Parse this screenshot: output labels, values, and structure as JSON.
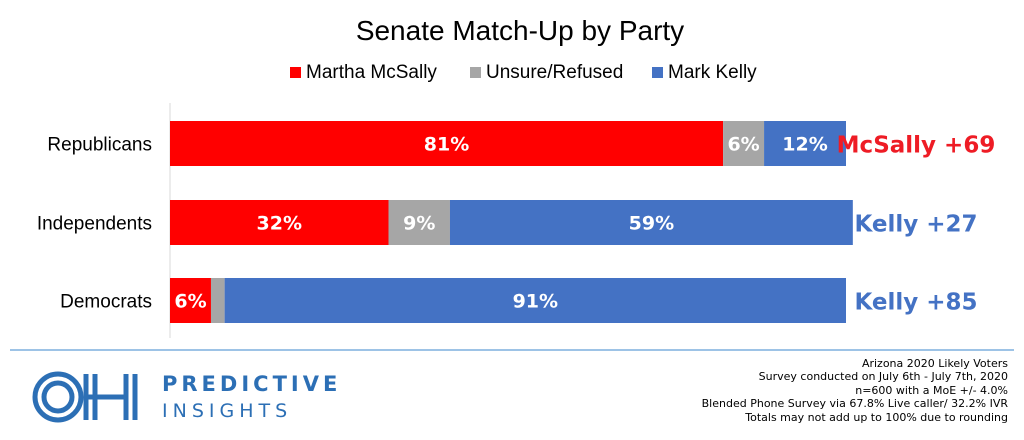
{
  "chart_data": {
    "type": "bar",
    "orientation": "horizontal",
    "stacked": true,
    "title": "Senate Match-Up by Party",
    "legend": {
      "placement": "top-center"
    },
    "categories": [
      "Republicans",
      "Independents",
      "Democrats"
    ],
    "series": [
      {
        "name": "Martha McSally",
        "color": "#ff0000",
        "values": [
          81,
          32,
          6
        ],
        "labels": [
          "81%",
          "32%",
          "6%"
        ]
      },
      {
        "name": "Unsure/Refused",
        "color": "#a6a6a6",
        "values": [
          6,
          9,
          2
        ],
        "labels": [
          "6%",
          "9%",
          ""
        ]
      },
      {
        "name": "Mark Kelly",
        "color": "#4472c4",
        "values": [
          12,
          59,
          91
        ],
        "labels": [
          "12%",
          "59%",
          "91%"
        ]
      }
    ],
    "xlim": [
      0,
      99
    ],
    "grid": false,
    "margins": [
      {
        "text": "McSally +69",
        "color": "#ee1c25"
      },
      {
        "text": "Kelly +27",
        "color": "#4472c4"
      },
      {
        "text": "Kelly +85",
        "color": "#4472c4"
      }
    ]
  },
  "footer": {
    "logo": {
      "brand_line1": "PREDICTIVE",
      "brand_line2": "INSIGHTS",
      "color": "#2c6fb5",
      "text": "OH"
    },
    "notes": [
      "Arizona 2020 Likely Voters",
      "Survey conducted on July 6th - July 7th, 2020",
      "n=600 with a MoE +/- 4.0%",
      "Blended Phone Survey via 67.8% Live caller/ 32.2% IVR",
      "Totals may not add up to 100% due to rounding"
    ]
  }
}
